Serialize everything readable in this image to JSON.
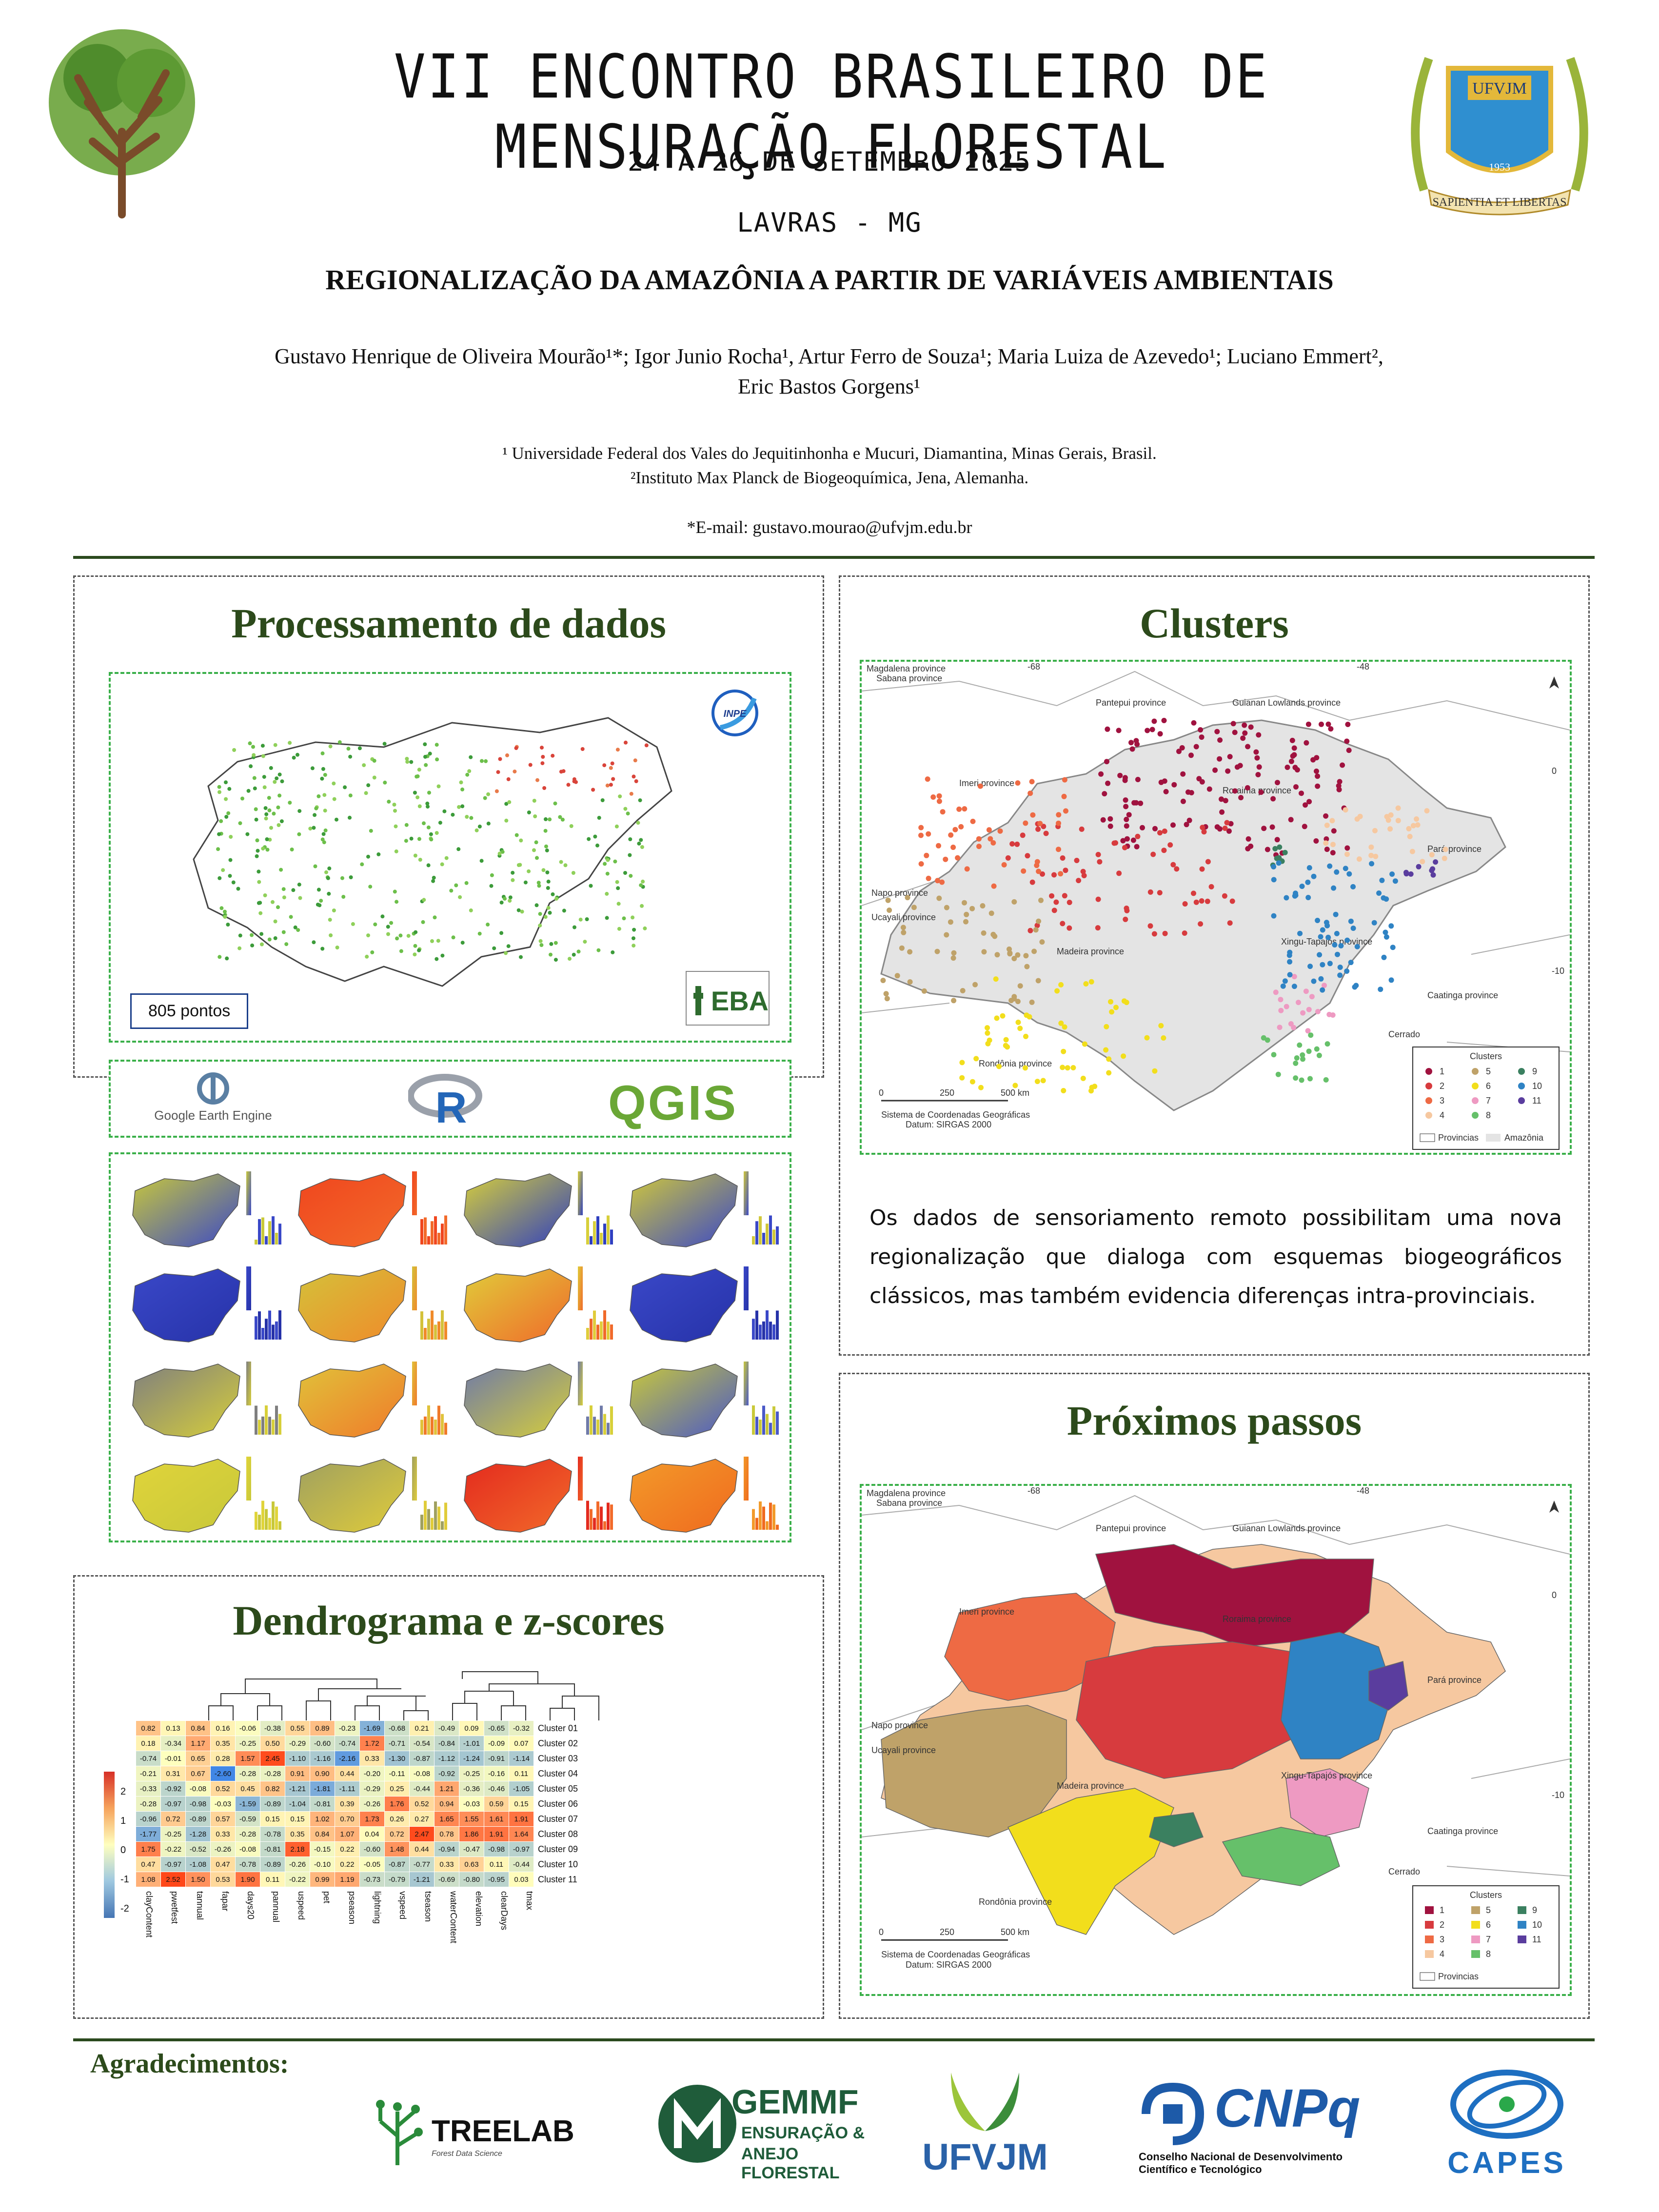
{
  "header": {
    "event_title": "VII ENCONTRO BRASILEIRO DE MENSURAÇÃO FLORESTAL",
    "dates": "24 A 26 DE SETEMBRO 2025",
    "place": "LAVRAS - MG",
    "ufvjm_badge": {
      "name": "UFVJM",
      "year": "1953",
      "motto": "SAPIENTIA ET LIBERTAS"
    }
  },
  "paper": {
    "title": "REGIONALIZAÇÃO DA AMAZÔNIA A PARTIR DE VARIÁVEIS AMBIENTAIS",
    "authors_line1": "Gustavo Henrique de Oliveira Mourão¹*; Igor Junio Rocha¹, Artur Ferro de Souza¹; Maria Luiza de Azevedo¹; Luciano Emmert²,",
    "authors_line2": "Eric Bastos Gorgens¹",
    "affiliation1": "¹ Universidade Federal dos Vales do Jequitinhonha e Mucuri, Diamantina, Minas Gerais, Brasil.",
    "affiliation2": "²Instituto Max Planck de Biogeoquímica, Jena, Alemanha.",
    "email": "*E-mail: gustavo.mourao@ufvjm.edu.br"
  },
  "processing": {
    "title": "Processamento de dados",
    "points_label": "805 pontos",
    "inpe_label": "INPE",
    "eba_label": "EBA",
    "tools": {
      "gee": "Google Earth Engine",
      "r": "R",
      "qgis": "QGIS"
    }
  },
  "dendrogram": {
    "title": "Dendrograma e z-scores",
    "scale_ticks": [
      "2",
      "1",
      "0",
      "-1",
      "-2"
    ],
    "variables": [
      "clayContent",
      "pwetfest",
      "tannual",
      "fapar",
      "days20",
      "pannual",
      "uspeed",
      "pet",
      "pseason",
      "lightning",
      "vspeed",
      "tseason",
      "waterContent",
      "elevation",
      "clearDays",
      "tmax"
    ],
    "rows": [
      {
        "label": "Cluster 01",
        "values": [
          0.82,
          0.13,
          0.84,
          0.16,
          -0.06,
          -0.38,
          0.55,
          0.89,
          -0.23,
          -1.69,
          -0.68,
          0.21,
          -0.49,
          0.09,
          -0.65,
          -0.32
        ]
      },
      {
        "label": "Cluster 02",
        "values": [
          0.18,
          -0.34,
          1.17,
          0.35,
          -0.25,
          0.5,
          -0.29,
          -0.6,
          -0.74,
          1.72,
          -0.71,
          -0.54,
          -0.84,
          -1.01,
          -0.09,
          0.07
        ]
      },
      {
        "label": "Cluster 03",
        "values": [
          -0.74,
          -0.01,
          0.65,
          0.28,
          1.57,
          2.45,
          -1.1,
          -1.16,
          -2.16,
          0.33,
          -1.3,
          -0.87,
          -1.12,
          -1.24,
          -0.91,
          -1.14
        ]
      },
      {
        "label": "Cluster 04",
        "values": [
          -0.21,
          0.31,
          0.67,
          -2.6,
          -0.28,
          -0.28,
          0.91,
          0.9,
          0.44,
          -0.2,
          -0.11,
          -0.08,
          -0.92,
          -0.25,
          -0.16,
          0.11
        ]
      },
      {
        "label": "Cluster 05",
        "values": [
          -0.33,
          -0.92,
          -0.08,
          0.52,
          0.45,
          0.82,
          -1.21,
          -1.81,
          -1.11,
          -0.29,
          0.25,
          -0.44,
          1.21,
          -0.36,
          -0.46,
          -1.05
        ]
      },
      {
        "label": "Cluster 06",
        "values": [
          -0.28,
          -0.97,
          -0.98,
          -0.03,
          -1.59,
          -0.89,
          -1.04,
          -0.81,
          0.39,
          -0.26,
          1.76,
          0.52,
          0.94,
          -0.03,
          0.59,
          0.15
        ]
      },
      {
        "label": "Cluster 07",
        "values": [
          -0.96,
          0.72,
          -0.89,
          0.57,
          -0.59,
          0.15,
          0.15,
          1.02,
          0.7,
          1.73,
          0.26,
          0.27,
          1.65,
          1.55,
          1.61,
          1.91
        ]
      },
      {
        "label": "Cluster 08",
        "values": [
          -1.77,
          -0.25,
          -1.28,
          0.33,
          -0.28,
          -0.78,
          0.35,
          0.84,
          1.07,
          0.04,
          0.72,
          2.47,
          0.78,
          1.86,
          1.91,
          1.64
        ]
      },
      {
        "label": "Cluster 09",
        "values": [
          1.75,
          -0.22,
          -0.52,
          -0.26,
          -0.08,
          -0.81,
          2.18,
          -0.15,
          0.22,
          -0.6,
          1.48,
          0.44,
          -0.94,
          -0.47,
          -0.98,
          -0.97
        ]
      },
      {
        "label": "Cluster 10",
        "values": [
          0.47,
          -0.97,
          -1.08,
          0.47,
          -0.78,
          -0.89,
          -0.26,
          -0.1,
          0.22,
          -0.05,
          -0.87,
          -0.77,
          0.33,
          0.63,
          0.11,
          -0.44
        ]
      },
      {
        "label": "Cluster 11",
        "values": [
          1.08,
          2.52,
          1.5,
          0.53,
          1.9,
          0.11,
          -0.22,
          0.99,
          1.19,
          -0.73,
          -0.79,
          -1.21,
          -0.69,
          -0.8,
          -0.95,
          0.03
        ]
      }
    ]
  },
  "clusters": {
    "title": "Clusters",
    "paragraph": "Os dados de sensoriamento remoto possibilitam uma nova regionalização que dialoga com esquemas biogeográficos clássicos, mas também evidencia diferenças intra-provinciais.",
    "legend_title": "Clusters",
    "legend_items": [
      "1",
      "2",
      "3",
      "4",
      "5",
      "6",
      "7",
      "8",
      "9",
      "10",
      "11"
    ],
    "legend_provinces": "Provincias",
    "legend_amazonia": "Amazônia",
    "provinces": [
      "Magdalena province",
      "Sabana province",
      "Pantepui province",
      "Guianan Lowlands province",
      "Imeri province",
      "Roraima province",
      "Napo province",
      "Pará province",
      "Ucayali province",
      "Madeira province",
      "Xingu-Tapajós province",
      "Caatinga province",
      "Rondônia province",
      "Cerrado"
    ],
    "scale": [
      "0",
      "250",
      "500 km"
    ],
    "crs_line1": "Sistema de Coordenadas Geográficas",
    "crs_line2": "Datum: SIRGAS 2000",
    "grid_labels": {
      "lon1": "-68",
      "lon2": "-48",
      "lat1": "0",
      "lat2": "-10"
    }
  },
  "next_steps": {
    "title": "Próximos passos"
  },
  "acknowledgements": {
    "title": "Agradecimentos:",
    "logos": {
      "treelab": "TREELAB",
      "treelab_sub": "Forest Data Science",
      "gemmf": "GEMMF",
      "gemmf_sub1": "ENSURAÇÃO &",
      "gemmf_sub2": "ANEJO FLORESTAL",
      "ufvjm": "UFVJM",
      "cnpq": "CNPq",
      "cnpq_sub1": "Conselho Nacional de Desenvolvimento",
      "cnpq_sub2": "Científico e Tecnológico",
      "capes": "CAPES"
    }
  },
  "colors": {
    "cluster_colors": [
      "#a0123f",
      "#d73b3e",
      "#ee6a44",
      "#f6c8a0",
      "#bfa269",
      "#f2de1c",
      "#ee9ac2",
      "#66c06a",
      "#3b8060",
      "#2f83c4",
      "#5a3d9e"
    ],
    "accent_green": "#2c4a1b",
    "dashed_green": "#3bb04a"
  }
}
